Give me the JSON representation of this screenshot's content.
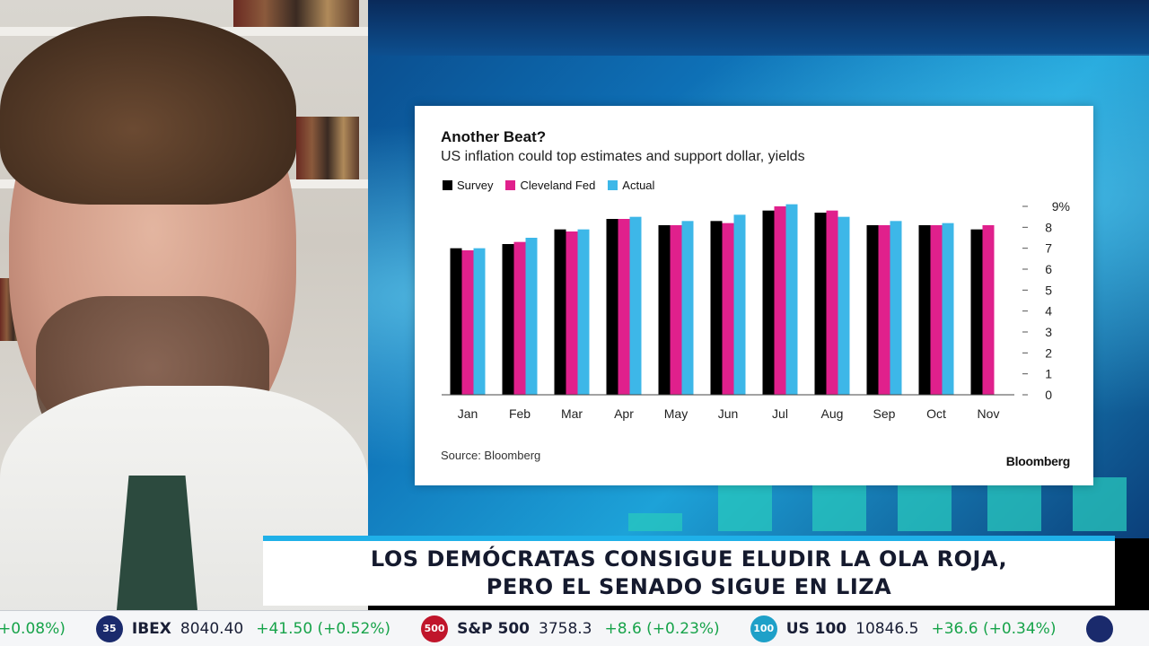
{
  "chart": {
    "title": "Another Beat?",
    "subtitle": "US inflation could top estimates and support dollar, yields",
    "source": "Source: Bloomberg",
    "brand": "Bloomberg"
  },
  "chart_data": {
    "type": "bar",
    "title": "Another Beat?",
    "subtitle": "US inflation could top estimates and support dollar, yields",
    "categories": [
      "Jan",
      "Feb",
      "Mar",
      "Apr",
      "May",
      "Jun",
      "Jul",
      "Aug",
      "Sep",
      "Oct",
      "Nov"
    ],
    "series": [
      {
        "name": "Survey",
        "color": "#000000",
        "values": [
          7.0,
          7.2,
          7.9,
          8.4,
          8.1,
          8.3,
          8.8,
          8.7,
          8.1,
          8.1,
          7.9
        ]
      },
      {
        "name": "Cleveland Fed",
        "color": "#e0208c",
        "values": [
          6.9,
          7.3,
          7.8,
          8.4,
          8.1,
          8.2,
          9.0,
          8.8,
          8.1,
          8.1,
          8.1
        ]
      },
      {
        "name": "Actual",
        "color": "#3db7e8",
        "values": [
          7.0,
          7.5,
          7.9,
          8.5,
          8.3,
          8.6,
          9.1,
          8.5,
          8.3,
          8.2,
          null
        ]
      }
    ],
    "yticks": [
      0,
      1,
      2,
      3,
      4,
      5,
      6,
      7,
      8
    ],
    "ytop_label": "9%",
    "ylim": [
      0,
      9
    ],
    "yaxis_side": "right",
    "legend_position": "top-left",
    "grid": false
  },
  "headline": {
    "line1": "LOS DEMÓCRATAS CONSIGUE ELUDIR LA OLA ROJA,",
    "line2": "PERO EL SENADO SIGUE EN LIZA"
  },
  "ticker": [
    {
      "badge": "",
      "badge_color": "#1a2a6c",
      "name": "",
      "value": "",
      "change": "+0.08%)",
      "partial": true
    },
    {
      "badge": "35",
      "badge_color": "#1a2a6c",
      "name": "IBEX",
      "value": "8040.40",
      "change": "+41.50 (+0.52%)"
    },
    {
      "badge": "500",
      "badge_color": "#c0152b",
      "name": "S&P 500",
      "value": "3758.3",
      "change": "+8.6 (+0.23%)"
    },
    {
      "badge": "100",
      "badge_color": "#1ea0c8",
      "name": "US 100",
      "value": "10846.5",
      "change": "+36.6 (+0.34%)"
    },
    {
      "badge": "",
      "badge_color": "#1a2a6c",
      "name": "",
      "value": "",
      "change": "",
      "partial": true
    }
  ]
}
